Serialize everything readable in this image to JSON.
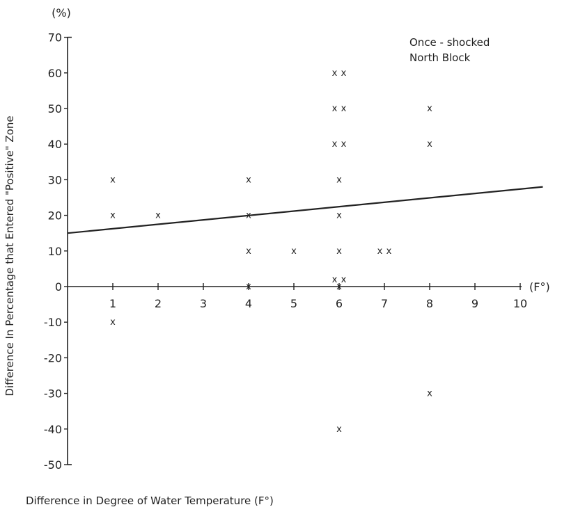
{
  "chart_data": {
    "type": "scatter",
    "title": "",
    "xlabel": "Difference in Degree of Water Temperature (F°)",
    "ylabel": "Difference In Percentage that Entered \"Positive\" Zone",
    "x_unit_label": "(F°)",
    "y_unit_label": "(%)",
    "xlim": [
      0,
      10
    ],
    "ylim": [
      -50,
      70
    ],
    "x_ticks": [
      1,
      2,
      3,
      4,
      5,
      6,
      7,
      8,
      9,
      10
    ],
    "y_ticks": [
      70,
      60,
      50,
      40,
      30,
      20,
      10,
      0,
      -10,
      -20,
      -30,
      -40,
      -50
    ],
    "annotations": [
      "Once - shocked",
      "North Block"
    ],
    "annotation_placement": "top-right",
    "grid": false,
    "legend": "none",
    "marker": "x",
    "points": [
      {
        "x": 1,
        "y": 30
      },
      {
        "x": 1,
        "y": 20
      },
      {
        "x": 1,
        "y": -10
      },
      {
        "x": 2,
        "y": 20
      },
      {
        "x": 4,
        "y": 30
      },
      {
        "x": 4,
        "y": 20
      },
      {
        "x": 4,
        "y": 10
      },
      {
        "x": 4,
        "y": 0
      },
      {
        "x": 5,
        "y": 10
      },
      {
        "x": 5.9,
        "y": 60
      },
      {
        "x": 6.1,
        "y": 60
      },
      {
        "x": 5.9,
        "y": 50
      },
      {
        "x": 6.1,
        "y": 50
      },
      {
        "x": 5.9,
        "y": 40
      },
      {
        "x": 6.1,
        "y": 40
      },
      {
        "x": 6,
        "y": 30
      },
      {
        "x": 6,
        "y": 20
      },
      {
        "x": 6,
        "y": 10
      },
      {
        "x": 5.9,
        "y": 2
      },
      {
        "x": 6.1,
        "y": 2
      },
      {
        "x": 6,
        "y": 0
      },
      {
        "x": 6,
        "y": -40
      },
      {
        "x": 6.9,
        "y": 10
      },
      {
        "x": 7.1,
        "y": 10
      },
      {
        "x": 8,
        "y": 50
      },
      {
        "x": 8,
        "y": 40
      },
      {
        "x": 8,
        "y": -30
      }
    ],
    "trend_line": {
      "x": [
        0,
        10.5
      ],
      "y": [
        15,
        28
      ]
    },
    "colors": {
      "ink": "#222222",
      "background": "#ffffff"
    }
  }
}
